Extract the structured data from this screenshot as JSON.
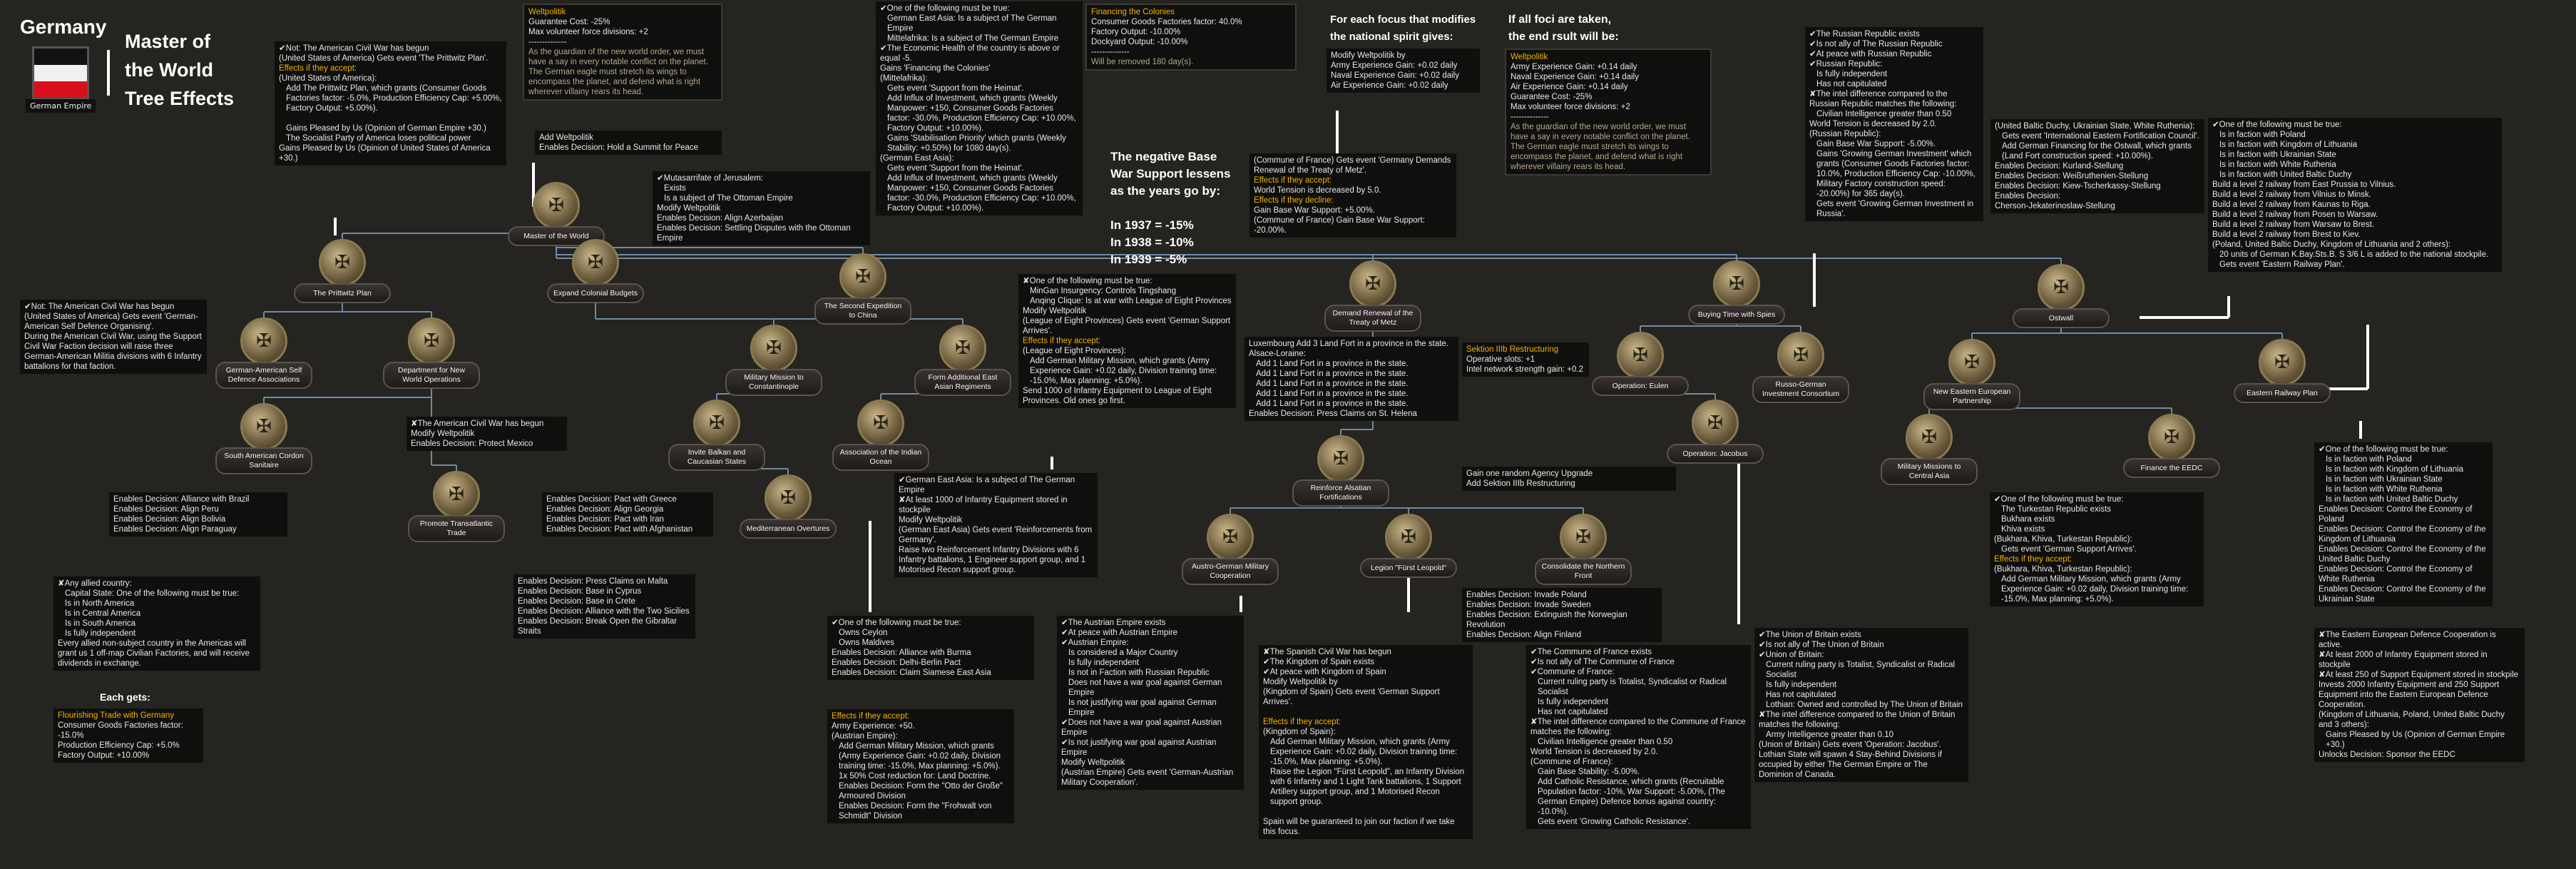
{
  "header": {
    "country": "Germany",
    "flag_caption": "German Empire",
    "title": "Master of the World Tree Effects",
    "flag_colors": [
      "#111111",
      "#f0f0f0",
      "#d8101c"
    ]
  },
  "colors": {
    "background": "#252420",
    "highlight": "#f0b400",
    "positive": "#22b422",
    "negative": "#e02020",
    "connector": "#6f8aa8"
  },
  "notes": {
    "war_support": [
      "The negative Base",
      "War Support lessens",
      "as the years go by:",
      "",
      "In 1937 = -15%",
      "In 1938 = -10%",
      "In 1939 = -5%"
    ],
    "each_focus": [
      "For each focus that modifies",
      "the national spirit gives:"
    ],
    "all_foci": [
      "If all foci are taken,",
      "the end rsult will be:"
    ],
    "each_gets": "Each gets:"
  },
  "focuses": [
    {
      "label": "Master of the World",
      "icon": "eagle-globe-icon"
    },
    {
      "label": "The Prittwitz Plan",
      "icon": "medal-icon"
    },
    {
      "label": "Expand Colonial Budgets",
      "icon": "colonial-flag-icon"
    },
    {
      "label": "German-American Self Defence Associations",
      "icon": "soldier-icon"
    },
    {
      "label": "Department for New World Operations",
      "icon": "americas-map-icon"
    },
    {
      "label": "The Second Expedition to China",
      "icon": "china-icon"
    },
    {
      "label": "Military Mission to Constantinople",
      "icon": "ottoman-icon"
    },
    {
      "label": "Form Additional East Asian Regiments",
      "icon": "regiment-icon"
    },
    {
      "label": "South American Cordon Sanitaire",
      "icon": "south-america-icon"
    },
    {
      "label": "Invite Balkan and Caucasian States",
      "icon": "handshake-icon"
    },
    {
      "label": "Association of the Indian Ocean",
      "icon": "india-map-icon"
    },
    {
      "label": "Promote Transatlantic Trade",
      "icon": "ship-icon"
    },
    {
      "label": "Mediterranean Overtures",
      "icon": "mediterranean-icon"
    },
    {
      "label": "Demand Renewal of the Treaty of Metz",
      "icon": "treaty-icon"
    },
    {
      "label": "Reinforce Alsatian Fortifications",
      "icon": "fortress-icon"
    },
    {
      "label": "Austro-German Military Cooperation",
      "icon": "austria-handshake-icon"
    },
    {
      "label": "Legion \"Fürst Leopold\"",
      "icon": "spain-eagle-icon"
    },
    {
      "label": "Consolidate the Northern Front",
      "icon": "northern-front-icon"
    },
    {
      "label": "Buying Time with Spies",
      "icon": "spy-icon"
    },
    {
      "label": "Operation: Eulen",
      "icon": "owl-icon"
    },
    {
      "label": "Russo-German Investment Consortium",
      "icon": "investment-icon"
    },
    {
      "label": "Operation: Jacobus",
      "icon": "spy-icon"
    },
    {
      "label": "Ostwall",
      "icon": "shields-icon"
    },
    {
      "label": "New Eastern European Partnership",
      "icon": "europe-map-icon"
    },
    {
      "label": "Eastern Railway Plan",
      "icon": "railway-gear-icon"
    },
    {
      "label": "Military Missions to Central Asia",
      "icon": "central-asia-icon"
    },
    {
      "label": "Finance the EEDC",
      "icon": "finance-icon"
    }
  ],
  "boxes": [
    {
      "id": "prittwitz",
      "lines": [
        "✔Not: The American Civil War has begun",
        "(United States of America) Gets event 'The Prittwitz Plan'.",
        "Effects if they accept:",
        "(United States of America):",
        "  Add The Prittwitz Plan, which grants (Consumer Goods Factories factor: -5.0%, Production Efficiency Cap: +5.00%, Factory Output: +5.00%).",
        "",
        "  Gains Pleased by Us (Opinion of German Empire +30.)",
        "  The Socialist Party of America loses political power",
        "Gains Pleased by Us (Opinion of United States of America +30.)"
      ]
    },
    {
      "id": "weltpolitik-spirit",
      "lines": [
        "Weltpolitik",
        "Guarantee Cost: -25%",
        "Max volunteer force divisions: +2",
        "--------------",
        "As the guardian of the new world order, we must have a say in every notable conflict on the planet. The German eagle must stretch its wings to encompass the planet, and defend what is right wherever villainy rears its head."
      ]
    },
    {
      "id": "add-weltpolitik",
      "lines": [
        "Add Weltpolitik",
        "Enables Decision: Hold a Summit for Peace"
      ]
    },
    {
      "id": "jerusalem",
      "lines": [
        "✔Mutasarrifate of Jerusalem:",
        "  Exists",
        "  Is a subject of The Ottoman Empire",
        "Modify Weltpolitik",
        "Enables Decision: Align Azerbaijan",
        "Enables Decision: Settling Disputes with the Ottoman Empire"
      ]
    },
    {
      "id": "colonies",
      "lines": [
        "✔One of the following must be true:",
        "  German East Asia: Is a subject of The German Empire",
        "  Mittelafrika: Is a subject of The German Empire",
        "✔The Economic Health of the country is above or equal -5.",
        "Gains 'Financing the Colonies'",
        "(Mittelafrika):",
        "  Gets event 'Support from the Heimat'.",
        "  Add Influx of Investment, which grants (Weekly Manpower: +150, Consumer Goods Factories factor: -30.0%, Production Efficiency Cap: +10.00%, Factory Output: +10.00%).",
        "  Gains 'Stabilisation Priority' which grants (Weekly Stability: +0.50%) for 1080 day(s).",
        "(German East Asia):",
        "  Gets event 'Support from the Heimat'.",
        "  Add Influx of Investment, which grants (Weekly Manpower: +150, Consumer Goods Factories factor: -30.0%, Production Efficiency Cap: +10.00%, Factory Output: +10.00%)."
      ]
    },
    {
      "id": "financing-spirit",
      "lines": [
        "Financing the Colonies",
        "Consumer Goods Factories factor: 40.0%",
        "Factory Output: -10.00%",
        "Dockyard Output: -10.00%",
        "--------------",
        "Will be removed 180 day(s)."
      ]
    },
    {
      "id": "each-focus",
      "lines": [
        "Modify Weltpolitik by",
        "Army Experience Gain: +0.02 daily",
        "Naval Experience Gain: +0.02 daily",
        "Air Experience Gain: +0.02 daily"
      ]
    },
    {
      "id": "end-result",
      "lines": [
        "Weltpolitik",
        "Army Experience Gain: +0.14 daily",
        "Naval Experience Gain: +0.14 daily",
        "Air Experience Gain: +0.14 daily",
        "Guarantee Cost: -25%",
        "Max volunteer force divisions: +2",
        "--------------",
        "As the guardian of the new world order, we must have a say in every notable conflict on the planet. The German eagle must stretch its wings to encompass the planet, and defend what is right wherever villainy rears its head."
      ]
    },
    {
      "id": "metz",
      "lines": [
        "(Commune of France) Gets event 'Germany Demands Renewal of the Treaty of Metz'.",
        "Effects if they accept:",
        "World Tension is decreased by 5.0.",
        "Effects if they decline:",
        "Gain Base War Support: +5.00%.",
        "(Commune of France) Gain Base War Support: -20.00%."
      ]
    },
    {
      "id": "russian-republic",
      "lines": [
        "✔The Russian Republic exists",
        "✔Is not ally of The Russian Republic",
        "✔At peace with Russian Republic",
        "✔Russian Republic:",
        "  Is fully independent",
        "  Has not capitulated",
        "✘The intel difference compared to the Russian Republic matches the following:",
        "  Civilian Intelligence greater than 0.50",
        "World Tension is decreased by 2.0.",
        "(Russian Republic):",
        "  Gain Base War Support: -5.00%.",
        "  Gains 'Growing German Investment' which grants (Consumer Goods Factories factor: 10.0%, Production Efficiency Cap: -10.00%, Military Factory construction speed: -20.00%) for 365 day(s).",
        "  Gets event 'Growing German Investment in Russia'."
      ]
    },
    {
      "id": "baltic",
      "lines": [
        "(United Baltic Duchy, Ukrainian State, White Ruthenia):",
        "  Gets event 'International Eastern Fortification Council'.",
        "  Add German Financing for the Ostwall, which grants (Land Fort construction speed: +10.00%).",
        "Enables Decision: Kurland-Stellung",
        "Enables Decision: Weißruthenien-Stellung",
        "Enables Decision: Kiew-Tscherkassy-Stellung",
        "Enables Decision:",
        "Cherson-Jekaterinoslaw-Stellung"
      ]
    },
    {
      "id": "railway",
      "lines": [
        "✔One of the following must be true:",
        "  Is in faction with Poland",
        "  Is in faction with Kingdom of Lithuania",
        "  Is in faction with Ukrainian State",
        "  Is in faction with White Ruthenia",
        "  Is in faction with United Baltic Duchy",
        "Build a level 2 railway from East Prussia to Vilnius.",
        "Build a level 2 railway from Vilnius to Minsk.",
        "Build a level 2 railway from Kaunas to Riga.",
        "Build a level 2 railway from Posen to Warsaw.",
        "Build a level 2 railway from Warsaw to Brest.",
        "Build a level 2 railway from Brest to Kiev.",
        "(Poland, United Baltic Duchy, Kingdom of Lithuania and 2 others):",
        "  20 units of German K.Bay.Sts.B. S 3/6 L is added to the national stockpile.",
        "  Gets event 'Eastern Railway Plan'."
      ]
    },
    {
      "id": "self-defence",
      "lines": [
        "✔Not: The American Civil War has begun",
        "(United States of America) Gets event 'German-American Self Defence Organising'.",
        "During the American Civil War, using the Support Civil War Faction decision will raise three German-American Militia divisions with 6 Infantry battalions for that faction."
      ]
    },
    {
      "id": "mexico",
      "lines": [
        "✘The American Civil War has begun",
        "Modify Weltpolitik",
        "Enables Decision: Protect Mexico"
      ]
    },
    {
      "id": "brazil",
      "lines": [
        "Enables Decision: Alliance with Brazil",
        "Enables Decision: Align Peru",
        "Enables Decision: Align Bolivia",
        "Enables Decision: Align Paraguay"
      ]
    },
    {
      "id": "greece",
      "lines": [
        "Enables Decision: Pact with Greece",
        "Enables Decision: Align Georgia",
        "Enables Decision: Pact with Iran",
        "Enables Decision: Pact with Afghanistan"
      ]
    },
    {
      "id": "allied-country",
      "lines": [
        "✘Any allied country:",
        "  Capital State: One of the following must be true:",
        "    Is in North America",
        "    Is in Central America",
        "    Is in South America",
        "  Is fully independent",
        "Every allied non-subject country in the Americas will grant us 1 off-map Civilian Factories, and will receive dividends in exchange."
      ]
    },
    {
      "id": "trade",
      "lines": [
        "Flourishing Trade with Germany",
        "Consumer Goods Factories factor: -15.0%",
        "Production Efficiency Cap: +5.0%",
        "Factory Output: +10.00%"
      ]
    },
    {
      "id": "malta",
      "lines": [
        "Enables Decision: Press Claims on Malta",
        "Enables Decision: Base in Cyprus",
        "Enables Decision: Base in Crete",
        "Enables Decision: Alliance with the Two Sicilies",
        "Enables Decision: Break Open the Gibraltar Straits"
      ]
    },
    {
      "id": "china",
      "lines": [
        "✘One of the following must be true:",
        "  MinGan Insurgency: Controls Tingshang",
        "  Anqing Clique: Is at war with League of Eight Provinces",
        "Modify Weltpolitik",
        "(League of Eight Provinces) Gets event 'German Support Arrives'.",
        "Effects if they accept:",
        "(League of Eight Provinces):",
        "  Add German Military Mission, which grants (Army Experience Gain: +0.02 daily, Division training time: -15.0%, Max planning: +5.0%).",
        "Send 1000 of Infantry Equipment to League of Eight Provinces. Old ones go first."
      ]
    },
    {
      "id": "luxembourg",
      "lines": [
        "Luxembourg Add 3 Land Fort in a province in the state.",
        "Alsace-Loraine:",
        "  Add 1 Land Fort in a province in the state.",
        "  Add 1 Land Fort in a province in the state.",
        "  Add 1 Land Fort in a province in the state.",
        "  Add 1 Land Fort in a province in the state.",
        "  Add 1 Land Fort in a province in the state.",
        "Enables Decision: Press Claims on St. Helena"
      ]
    },
    {
      "id": "agency",
      "lines": [
        "Gain one random Agency Upgrade",
        "Add Sektion IIIb Restructuring"
      ]
    },
    {
      "id": "sektion",
      "lines": [
        "Sektion IIIb Restructuring",
        "Operative slots: +1",
        "Intel network strength gain: +0.2"
      ]
    },
    {
      "id": "invade",
      "lines": [
        "Enables Decision: Invade Poland",
        "Enables Decision: Invade Sweden",
        "Enables Decision: Extinguish the Norwegian Revolution",
        "Enables Decision: Align Finland"
      ]
    },
    {
      "id": "east-asia",
      "lines": [
        "✔German East Asia: Is a subject of The German Empire",
        "✘At least 1000 of Infantry Equipment stored in stockpile",
        "Modify Weltpolitik",
        "(German East Asia) Gets event 'Reinforcements from Germany'.",
        "Raise two Reinforcement Infantry Divisions with 6 Infantry battalions, 1 Engineer support group, and 1 Motorised Recon support group."
      ]
    },
    {
      "id": "indian-ocean",
      "lines": [
        "✔One of the following must be true:",
        "  Owns Ceylon",
        "  Owns Maldives",
        "Enables Decision: Alliance with Burma",
        "Enables Decision: Delhi-Berlin Pact",
        "Enables Decision: Claim Siamese East Asia"
      ]
    },
    {
      "id": "austria-accept",
      "lines": [
        "Effects if they accept:",
        "Army Experience: +50.",
        "(Austrian Empire):",
        "  Add German Military Mission, which grants (Army Experience Gain: +0.02 daily, Division training time: -15.0%, Max planning: +5.0%).",
        "  1x 50% Cost reduction for: Land Doctrine.",
        "  Enables Decision: Form the \"Otto der Große\" Armoured Division",
        "  Enables Decision: Form the \"Frohwalt von Schmidt\" Division"
      ]
    },
    {
      "id": "austria",
      "lines": [
        "✔The Austrian Empire exists",
        "✔At peace with Austrian Empire",
        "✔Austrian Empire:",
        "  Is considered a Major Country",
        "  Is fully independent",
        "  Is not in Faction with Russian Republic",
        "  Does not have a war goal against German Empire",
        "  Is not justifying war goal against German Empire",
        "✔Does not have a war goal against Austrian Empire",
        "✔Is not justifying war goal against Austrian Empire",
        "Modify Weltpolitik",
        "(Austrian Empire) Gets event 'German-Austrian Military Cooperation'."
      ]
    },
    {
      "id": "spain",
      "lines": [
        "✘The Spanish Civil War has begun",
        "✔The Kingdom of Spain exists",
        "✔At peace with Kingdom of Spain",
        "Modify Weltpolitik by",
        "(Kingdom of Spain) Gets event 'German Support Arrives'.",
        "",
        "Effects if they accept:",
        "(Kingdom of Spain):",
        "  Add German Military Mission, which grants (Army Experience Gain: +0.02 daily, Division training time: -15.0%, Max planning: +5.0%).",
        "  Raise the Legion \"Fürst Leopold\", an Infantry Division with 6 Infantry and 1 Light Tank battalions, 1 Support Artillery support group, and 1 Motorised Recon support group.",
        "",
        "Spain will be guaranteed to join our faction if we take this focus."
      ]
    },
    {
      "id": "commune",
      "lines": [
        "✔The Commune of France exists",
        "✔Is not ally of The Commune of France",
        "✔Commune of France:",
        "  Current ruling party is Totalist, Syndicalist or Radical Socialist",
        "  Is fully independent",
        "  Has not capitulated",
        "✘The intel difference compared to the Commune of France matches the following:",
        "  Civilian Intelligence greater than 0.50",
        "World Tension is decreased by 2.0.",
        "(Commune of France):",
        "  Gain Base Stability: -5.00%.",
        "  Add Catholic Resistance, which grants (Recruitable Population factor: -10%, War Support: -5.00%, (The German Empire) Defence bonus against country: -10.0%).",
        "  Gets event 'Growing Catholic Resistance'."
      ]
    },
    {
      "id": "britain",
      "lines": [
        "✔The Union of Britain exists",
        "✔Is not ally of The Union of Britain",
        "✔Union of Britain:",
        "  Current ruling party is Totalist, Syndicalist or Radical Socialist",
        "  Is fully independent",
        "  Has not capitulated",
        "  Lothian: Owned and controlled by The Union of Britain",
        "✘The intel difference compared to the Union of Britain matches the following:",
        "  Army Intelligence greater than 0.10",
        "(Union of Britain) Gets event 'Operation: Jacobus'.",
        "Lothian State will spawn 4 Stay-Behind Divisions if occupied by either The German Empire or The Dominion of Canada."
      ]
    },
    {
      "id": "turkestan",
      "lines": [
        "✔One of the following must be true:",
        "  The Turkestan Republic exists",
        "  Bukhara exists",
        "  Khiva exists",
        "(Bukhara, Khiva, Turkestan Republic):",
        "  Gets event 'German Support Arrives'.",
        "Effects if they accept:",
        "(Bukhara, Khiva, Turkestan Republic):",
        "  Add German Military Mission, which grants (Army Experience Gain: +0.02 daily, Division training time: -15.0%, Max planning: +5.0%)."
      ]
    },
    {
      "id": "eedc-control",
      "lines": [
        "✔One of the following must be true:",
        "  Is in faction with Poland",
        "  Is in faction with Kingdom of Lithuania",
        "  Is in faction with Ukrainian State",
        "  Is in faction with White Ruthenia",
        "  Is in faction with United Baltic Duchy",
        "Enables Decision: Control the Economy of Poland",
        "Enables Decision: Control the Economy of the Kingdom of Lithuania",
        "Enables Decision: Control the Economy of the United Baltic Duchy",
        "Enables Decision: Control the Economy of White Ruthenia",
        "Enables Decision: Control the Economy of the Ukrainian State"
      ]
    },
    {
      "id": "eedc",
      "lines": [
        "✘The Eastern European Defence Cooperation is active.",
        "✘At least 2000 of Infantry Equipment stored in stockpile",
        "✘At least 250 of Support Equipment stored in stockpile",
        "Invests 2000 Infantry Equipment and 250 Support Equipment into the Eastern European Defence Cooperation.",
        "(Kingdom of Lithuania, Poland, United Baltic Duchy and 3 others):",
        "  Gains Pleased by Us (Opinion of German Empire +30.)",
        "Unlocks Decision: Sponsor the EEDC"
      ]
    }
  ]
}
